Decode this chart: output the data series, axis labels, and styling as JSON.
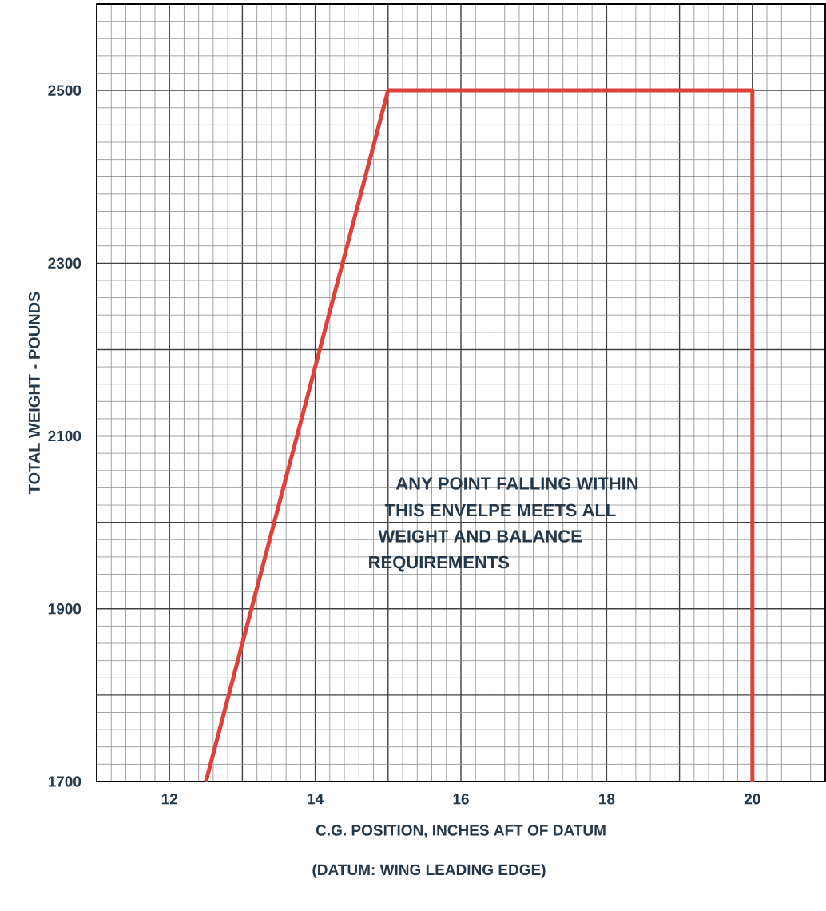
{
  "chart_data": {
    "type": "line",
    "xlabel": "C.G. POSITION, INCHES AFT OF DATUM",
    "ylabel": "TOTAL WEIGHT - POUNDS",
    "annotations": [
      "ANY POINT FALLING WITHIN",
      "THIS ENVELPE MEETS ALL",
      "WEIGHT AND BALANCE",
      "REQUIREMENTS",
      "(DATUM: WING LEADING EDGE)"
    ],
    "series": [
      {
        "color": "#e0403a",
        "x": [
          12.5,
          15,
          20,
          20
        ],
        "values": [
          1700,
          2500,
          2500,
          1700
        ]
      }
    ],
    "xlim": [
      11,
      21
    ],
    "ylim": [
      1700,
      2600
    ],
    "xticks": [
      {
        "value": 11,
        "label": null
      },
      12,
      {
        "value": 13,
        "label": null
      },
      14,
      {
        "value": 15,
        "label": null
      },
      16,
      {
        "value": 17,
        "label": null
      },
      18,
      {
        "value": 19,
        "label": null
      },
      20,
      {
        "value": 21,
        "label": null
      }
    ],
    "yticks": [
      1700,
      {
        "value": 1800,
        "label": null
      },
      1900,
      {
        "value": 2000,
        "label": null
      },
      2100,
      {
        "value": 2200,
        "label": null
      },
      2300,
      {
        "value": 2400,
        "label": null
      },
      2500,
      {
        "value": 2600,
        "label": null
      }
    ],
    "grid": true,
    "marker": "none",
    "line_style": "solid"
  }
}
